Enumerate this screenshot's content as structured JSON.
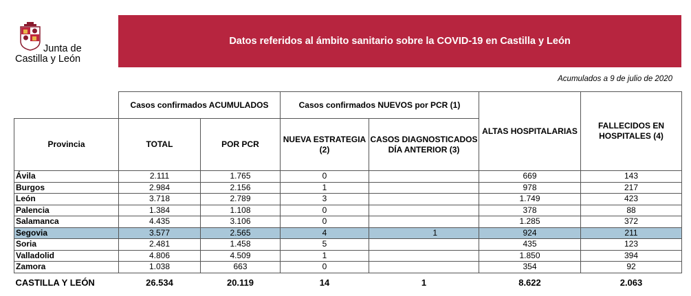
{
  "logo": {
    "line1": "Junta de",
    "line2": "Castilla y León"
  },
  "banner": {
    "title": "Datos referidos al ámbito sanitario sobre la COVID-19 en Castilla y León"
  },
  "date_note": "Acumulados a 9 de julio de 2020",
  "headers": {
    "group_acumulados": "Casos confirmados ACUMULADOS",
    "group_nuevos": "Casos confirmados NUEVOS por PCR (1)",
    "provincia": "Provincia",
    "total": "TOTAL",
    "por_pcr": "POR PCR",
    "nueva_estrategia": "NUEVA ESTRATEGIA (2)",
    "casos_dia_anterior": "CASOS DIAGNOSTICADOS DÍA ANTERIOR (3)",
    "altas": "ALTAS HOSPITALARIAS",
    "fallecidos": "FALLECIDOS EN HOSPITALES (4)"
  },
  "rows": [
    {
      "provincia": "Ávila",
      "total": "2.111",
      "pcr": "1.765",
      "nueva": "0",
      "dia": "",
      "altas": "669",
      "fallecidos": "143"
    },
    {
      "provincia": "Burgos",
      "total": "2.984",
      "pcr": "2.156",
      "nueva": "1",
      "dia": "",
      "altas": "978",
      "fallecidos": "217"
    },
    {
      "provincia": "León",
      "total": "3.718",
      "pcr": "2.789",
      "nueva": "3",
      "dia": "",
      "altas": "1.749",
      "fallecidos": "423"
    },
    {
      "provincia": "Palencia",
      "total": "1.384",
      "pcr": "1.108",
      "nueva": "0",
      "dia": "",
      "altas": "378",
      "fallecidos": "88"
    },
    {
      "provincia": "Salamanca",
      "total": "4.435",
      "pcr": "3.106",
      "nueva": "0",
      "dia": "",
      "altas": "1.285",
      "fallecidos": "372"
    },
    {
      "provincia": "Segovia",
      "total": "3.577",
      "pcr": "2.565",
      "nueva": "4",
      "dia": "1",
      "altas": "924",
      "fallecidos": "211"
    },
    {
      "provincia": "Soria",
      "total": "2.481",
      "pcr": "1.458",
      "nueva": "5",
      "dia": "",
      "altas": "435",
      "fallecidos": "123"
    },
    {
      "provincia": "Valladolid",
      "total": "4.806",
      "pcr": "4.509",
      "nueva": "1",
      "dia": "",
      "altas": "1.850",
      "fallecidos": "394"
    },
    {
      "provincia": "Zamora",
      "total": "1.038",
      "pcr": "663",
      "nueva": "0",
      "dia": "",
      "altas": "354",
      "fallecidos": "92"
    }
  ],
  "totals": {
    "provincia": "CASTILLA Y LEÓN",
    "total": "26.534",
    "pcr": "20.119",
    "nueva": "14",
    "dia": "1",
    "altas": "8.622",
    "fallecidos": "2.063"
  },
  "colors": {
    "banner": "#b7253f",
    "highlight": "#a9c7d9"
  }
}
